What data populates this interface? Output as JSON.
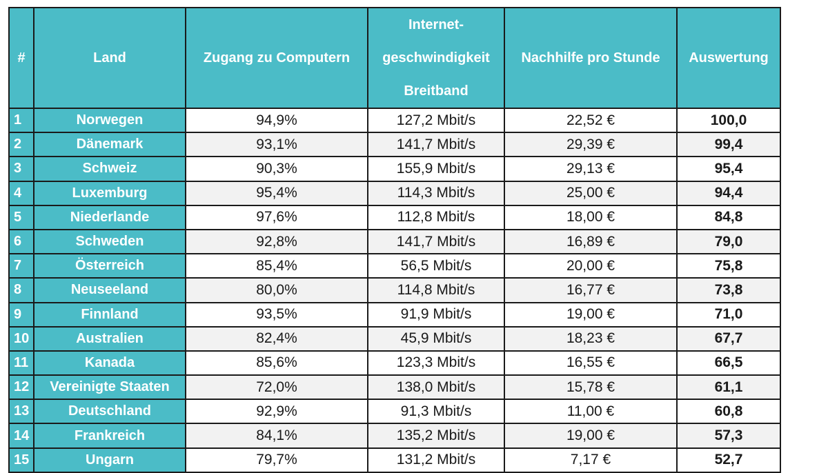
{
  "header": {
    "rank": "#",
    "country": "Land",
    "computer_access": "Zugang zu Computern",
    "internet_line1": "Internet-",
    "internet_line2": "geschwindigkeit",
    "internet_line3": "Breitband",
    "tutoring": "Nachhilfe pro Stunde",
    "score": "Auswertung"
  },
  "rows": [
    {
      "rank": "1",
      "country": "Norwegen",
      "computer": "94,9%",
      "internet": "127,2 Mbit/s",
      "tutoring": "22,52 €",
      "score": "100,0"
    },
    {
      "rank": "2",
      "country": "Dänemark",
      "computer": "93,1%",
      "internet": "141,7 Mbit/s",
      "tutoring": "29,39 €",
      "score": "99,4"
    },
    {
      "rank": "3",
      "country": "Schweiz",
      "computer": "90,3%",
      "internet": "155,9 Mbit/s",
      "tutoring": "29,13 €",
      "score": "95,4"
    },
    {
      "rank": "4",
      "country": "Luxemburg",
      "computer": "95,4%",
      "internet": "114,3 Mbit/s",
      "tutoring": "25,00 €",
      "score": "94,4"
    },
    {
      "rank": "5",
      "country": "Niederlande",
      "computer": "97,6%",
      "internet": "112,8 Mbit/s",
      "tutoring": "18,00 €",
      "score": "84,8"
    },
    {
      "rank": "6",
      "country": "Schweden",
      "computer": "92,8%",
      "internet": "141,7 Mbit/s",
      "tutoring": "16,89 €",
      "score": "79,0"
    },
    {
      "rank": "7",
      "country": "Österreich",
      "computer": "85,4%",
      "internet": "56,5 Mbit/s",
      "tutoring": "20,00 €",
      "score": "75,8"
    },
    {
      "rank": "8",
      "country": "Neuseeland",
      "computer": "80,0%",
      "internet": "114,8 Mbit/s",
      "tutoring": "16,77 €",
      "score": "73,8"
    },
    {
      "rank": "9",
      "country": "Finnland",
      "computer": "93,5%",
      "internet": "91,9 Mbit/s",
      "tutoring": "19,00 €",
      "score": "71,0"
    },
    {
      "rank": "10",
      "country": "Australien",
      "computer": "82,4%",
      "internet": "45,9 Mbit/s",
      "tutoring": "18,23 €",
      "score": "67,7"
    },
    {
      "rank": "11",
      "country": "Kanada",
      "computer": "85,6%",
      "internet": "123,3 Mbit/s",
      "tutoring": "16,55 €",
      "score": "66,5"
    },
    {
      "rank": "12",
      "country": "Vereinigte Staaten",
      "computer": "72,0%",
      "internet": "138,0 Mbit/s",
      "tutoring": "15,78 €",
      "score": "61,1"
    },
    {
      "rank": "13",
      "country": "Deutschland",
      "computer": "92,9%",
      "internet": "91,3 Mbit/s",
      "tutoring": "11,00 €",
      "score": "60,8"
    },
    {
      "rank": "14",
      "country": "Frankreich",
      "computer": "84,1%",
      "internet": "135,2 Mbit/s",
      "tutoring": "19,00 €",
      "score": "57,3"
    },
    {
      "rank": "15",
      "country": "Ungarn",
      "computer": "79,7%",
      "internet": "131,2 Mbit/s",
      "tutoring": "7,17 €",
      "score": "52,7"
    }
  ],
  "colors": {
    "header_bg": "#4bbcc7",
    "header_text": "#ffffff",
    "alt_row_bg": "#f2f2f2",
    "border": "#1a1a1a"
  }
}
